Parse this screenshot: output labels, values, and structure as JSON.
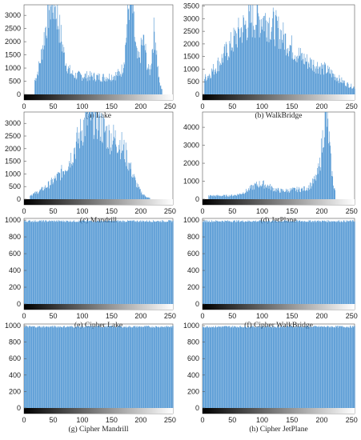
{
  "chart_data": [
    {
      "type": "bar",
      "caption": "(a) Lake",
      "profile": "lake",
      "xlim": [
        0,
        255
      ],
      "ylim": [
        0,
        3400
      ],
      "xticks": [
        0,
        50,
        100,
        150,
        200,
        250
      ],
      "yticks": [
        0,
        500,
        1000,
        1500,
        2000,
        2500,
        3000
      ],
      "peaks": [
        {
          "x": 48,
          "y": 3000
        },
        {
          "x": 182,
          "y": 3300
        },
        {
          "x": 223,
          "y": 2200
        }
      ]
    },
    {
      "type": "bar",
      "caption": "(b) WalkBridge",
      "profile": "walkbridge",
      "xlim": [
        0,
        255
      ],
      "ylim": [
        0,
        3550
      ],
      "xticks": [
        0,
        50,
        100,
        150,
        200,
        250
      ],
      "yticks": [
        0,
        500,
        1000,
        1500,
        2000,
        2500,
        3000,
        3500
      ],
      "peaks": [
        {
          "x": 88,
          "y": 3300
        }
      ]
    },
    {
      "type": "bar",
      "caption": "(c) Mandrill",
      "profile": "mandrill",
      "xlim": [
        0,
        255
      ],
      "ylim": [
        0,
        3450
      ],
      "xticks": [
        0,
        50,
        100,
        150,
        200,
        250
      ],
      "yticks": [
        0,
        500,
        1000,
        1500,
        2000,
        2500,
        3000
      ],
      "peaks": [
        {
          "x": 118,
          "y": 2900
        },
        {
          "x": 165,
          "y": 2450
        }
      ]
    },
    {
      "type": "bar",
      "caption": "(d) JetPlane",
      "profile": "jetplane",
      "xlim": [
        0,
        255
      ],
      "ylim": [
        0,
        4850
      ],
      "xticks": [
        0,
        50,
        100,
        150,
        200,
        250
      ],
      "yticks": [
        0,
        1000,
        2000,
        3000,
        4000
      ],
      "peaks": [
        {
          "x": 97,
          "y": 900
        },
        {
          "x": 207,
          "y": 4850
        }
      ]
    },
    {
      "type": "bar",
      "caption": "(e) Cipher Lake",
      "profile": "flat",
      "xlim": [
        0,
        255
      ],
      "ylim": [
        0,
        1020
      ],
      "xticks": [
        0,
        50,
        100,
        150,
        200,
        250
      ],
      "yticks": [
        0,
        200,
        400,
        600,
        800,
        1000
      ],
      "level": 1000
    },
    {
      "type": "bar",
      "caption": "(f) Cipher WalkBridge",
      "profile": "flat",
      "xlim": [
        0,
        255
      ],
      "ylim": [
        0,
        1020
      ],
      "xticks": [
        0,
        50,
        100,
        150,
        200,
        250
      ],
      "yticks": [
        0,
        200,
        400,
        600,
        800,
        1000
      ],
      "level": 1000
    },
    {
      "type": "bar",
      "caption": "(g) Cipher Mandrill",
      "profile": "flat",
      "xlim": [
        0,
        255
      ],
      "ylim": [
        0,
        1020
      ],
      "xticks": [
        0,
        50,
        100,
        150,
        200,
        250
      ],
      "yticks": [
        0,
        200,
        400,
        600,
        800,
        1000
      ],
      "level": 1000
    },
    {
      "type": "bar",
      "caption": "(h) Cipher JetPlane",
      "profile": "flat",
      "xlim": [
        0,
        255
      ],
      "ylim": [
        0,
        1020
      ],
      "xticks": [
        0,
        50,
        100,
        150,
        200,
        250
      ],
      "yticks": [
        0,
        200,
        400,
        600,
        800,
        1000
      ],
      "level": 1000
    }
  ],
  "colors": {
    "bar": "#3f8ccf",
    "axis": "#555555",
    "text": "#222222"
  }
}
